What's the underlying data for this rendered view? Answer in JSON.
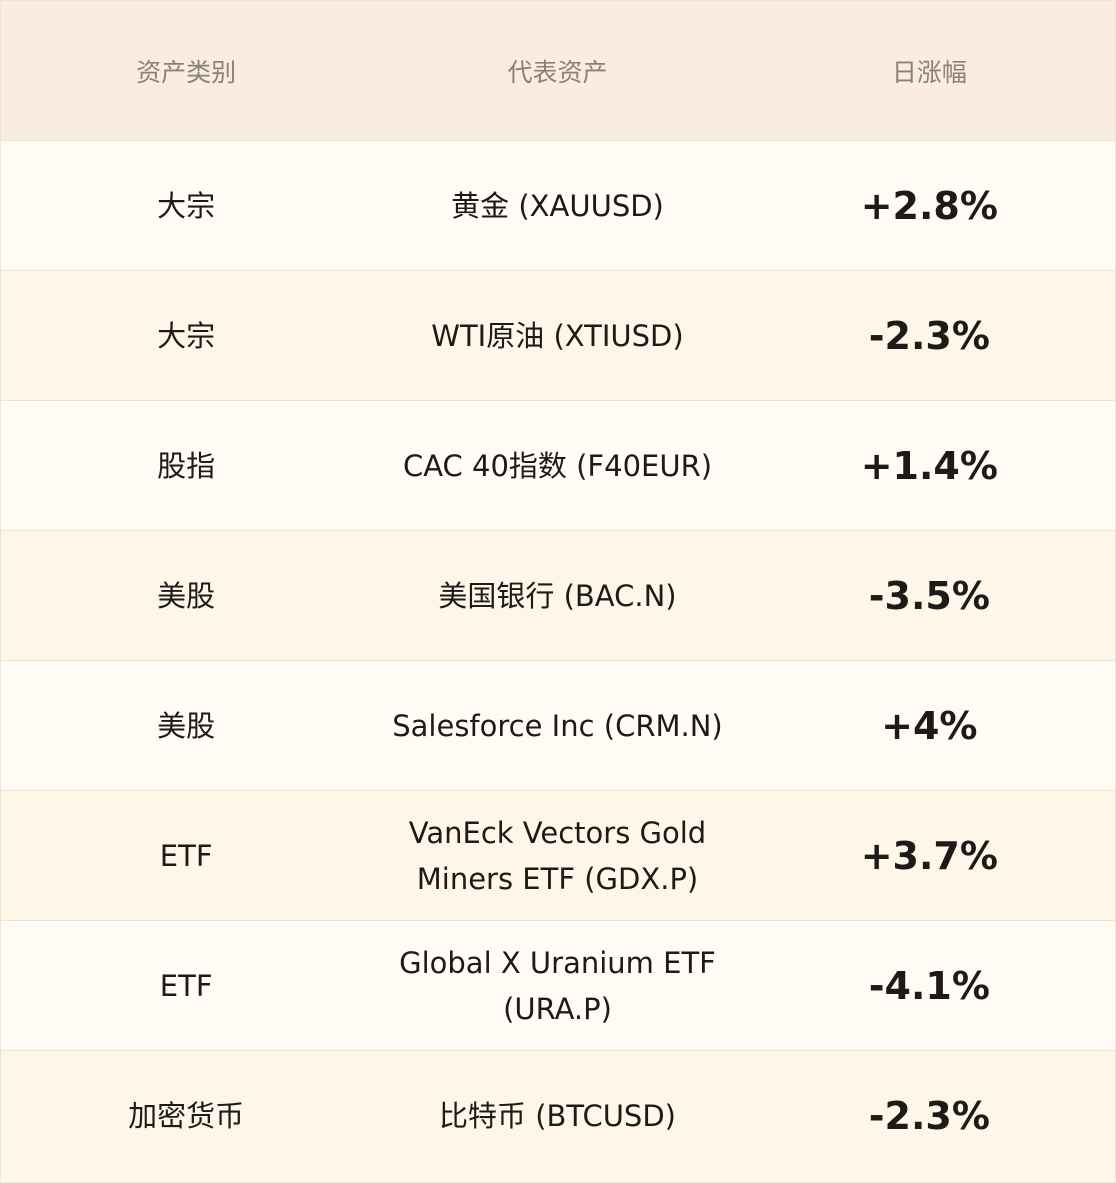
{
  "headers": [
    "资产类别",
    "代表资产",
    "日涨幅"
  ],
  "rows": [
    {
      "category": "大宗",
      "asset": "黄金 (XAUUSD)",
      "change": "+2.8%"
    },
    {
      "category": "大宗",
      "asset": "WTI原油 (XTIUSD)",
      "change": "-2.3%"
    },
    {
      "category": "股指",
      "asset": "CAC 40指数 (F40EUR)",
      "change": "+1.4%"
    },
    {
      "category": "美股",
      "asset": "美国银行 (BAC.N)",
      "change": "-3.5%"
    },
    {
      "category": "美股",
      "asset": "Salesforce Inc (CRM.N)",
      "change": "+4%"
    },
    {
      "category": "ETF",
      "asset": "VanEck Vectors Gold Miners ETF (GDX.P)",
      "change": "+3.7%"
    },
    {
      "category": "ETF",
      "asset": "Global X Uranium ETF (URA.P)",
      "change": "-4.1%"
    },
    {
      "category": "加密货币",
      "asset": "比特币 (BTCUSD)",
      "change": "-2.3%"
    }
  ]
}
